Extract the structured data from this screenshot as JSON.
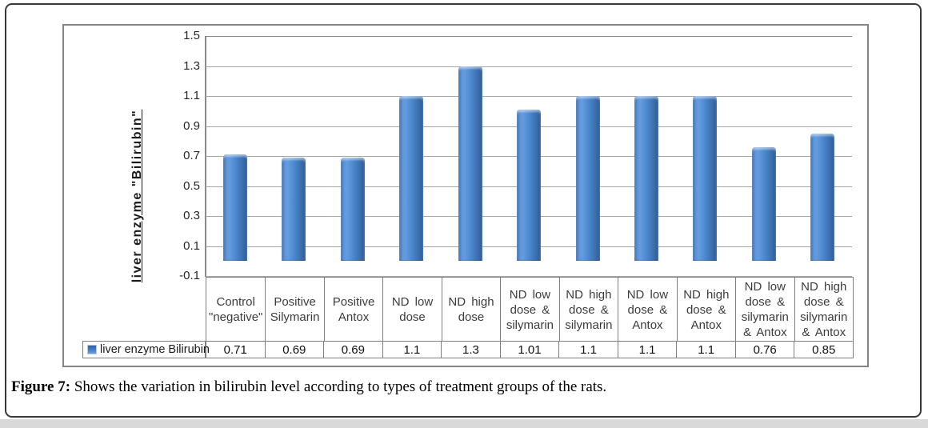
{
  "figure": {
    "caption_label": "Figure 7:",
    "caption_text": " Shows the variation in bilirubin level according to types of treatment groups of the rats."
  },
  "chart_data": {
    "type": "bar",
    "title": "",
    "y_axis_title": "liver enzyme \"Bilirubin\"",
    "legend_label": "liver enzyme Bilirubin",
    "legend_position": "bottom-left, attached to data table",
    "categories": [
      "Control \"negative\"",
      "Positive Silymarin",
      "Positive Antox",
      "ND low dose",
      "ND high dose",
      "ND low dose & silymarin",
      "ND high dose & silymarin",
      "ND low dose & Antox",
      "ND high dose & Antox",
      "ND low dose & silymarin & Antox",
      "ND high dose & silymarin & Antox"
    ],
    "values": [
      0.71,
      0.69,
      0.69,
      1.1,
      1.3,
      1.01,
      1.1,
      1.1,
      1.1,
      0.76,
      0.85
    ],
    "value_labels": [
      "0.71",
      "0.69",
      "0.69",
      "1.1",
      "1.3",
      "1.01",
      "1.1",
      "1.1",
      "1.1",
      "0.76",
      "0.85"
    ],
    "yticks": [
      1.5,
      1.3,
      1.1,
      0.9,
      0.7,
      0.5,
      0.3,
      0.1,
      -0.1
    ],
    "ytick_labels": [
      "1.5",
      "1.3",
      "1.1",
      "0.9",
      "0.7",
      "0.5",
      "0.3",
      "0.1",
      "-0.1"
    ],
    "ylim": [
      -0.1,
      1.5
    ],
    "grid": true,
    "has_data_table": true,
    "colors": {
      "bar_main": "#4a86cb",
      "bar_highlight": "#649bdf",
      "bar_shadow": "#2e5b95",
      "gridline": "#a6a6a6",
      "axis_line": "#8a8a8a",
      "table_border": "#7f7f7f",
      "container_border": "#848484",
      "frame_border": "#3a3a3a",
      "bottom_strip": "#d9d9d9"
    }
  }
}
